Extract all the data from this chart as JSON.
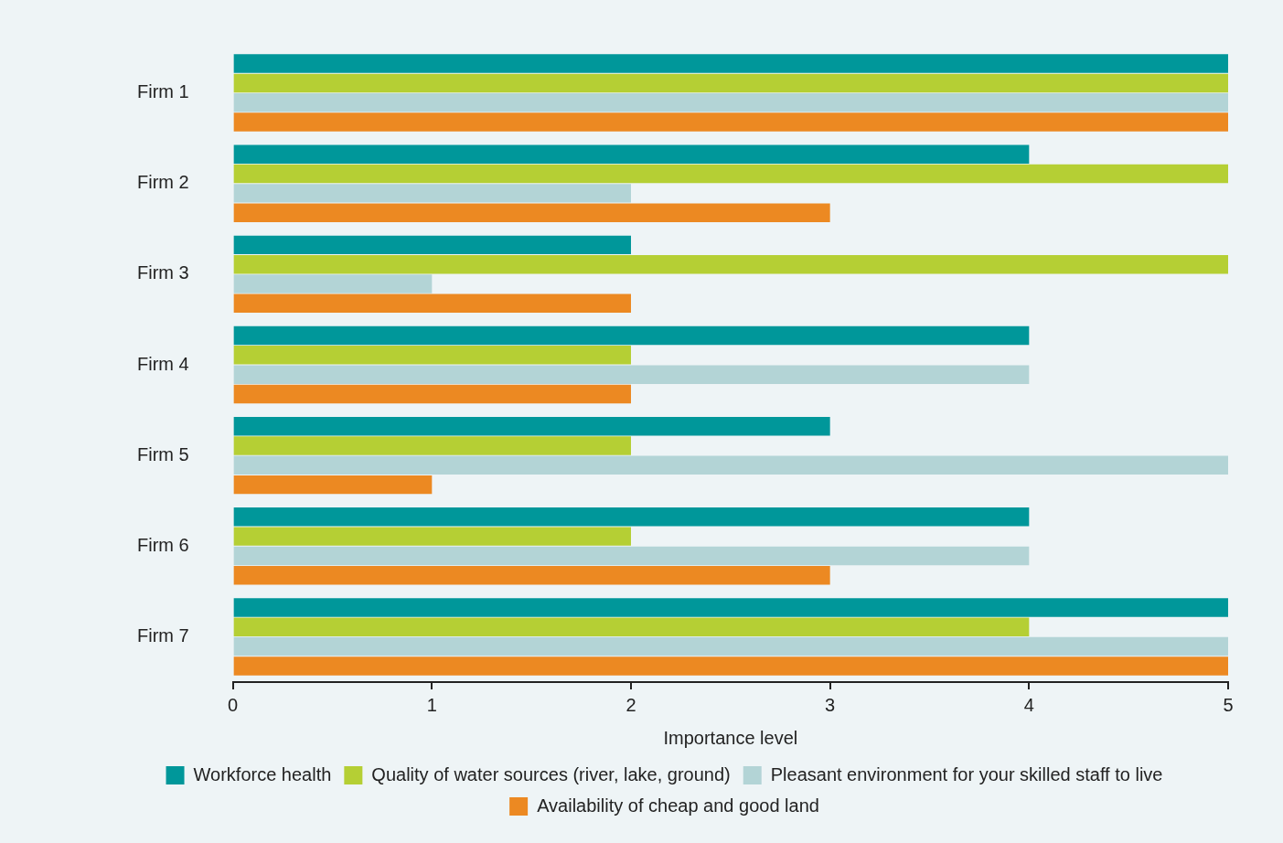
{
  "chart_data": {
    "type": "bar",
    "orientation": "horizontal",
    "xlabel": "Importance level",
    "categories": [
      "Firm 1",
      "Firm 2",
      "Firm 3",
      "Firm 4",
      "Firm 5",
      "Firm 6",
      "Firm 7"
    ],
    "series": [
      {
        "name": "Workforce health",
        "color": "#00979a",
        "values": [
          5,
          4,
          2,
          4,
          3,
          4,
          5
        ]
      },
      {
        "name": "Quality of water sources (river, lake, ground)",
        "color": "#b5cf34",
        "values": [
          5,
          5,
          5,
          2,
          2,
          2,
          4
        ]
      },
      {
        "name": "Pleasant environment for your skilled staff to live",
        "color": "#b3d4d6",
        "values": [
          5,
          2,
          1,
          4,
          5,
          4,
          5
        ]
      },
      {
        "name": "Availability of cheap and good land",
        "color": "#ec8922",
        "values": [
          5,
          3,
          2,
          2,
          1,
          3,
          5
        ]
      }
    ],
    "xlim": [
      0,
      5
    ],
    "xticks": [
      0,
      1,
      2,
      3,
      4,
      5
    ],
    "grid": false,
    "legend": "bottom"
  }
}
